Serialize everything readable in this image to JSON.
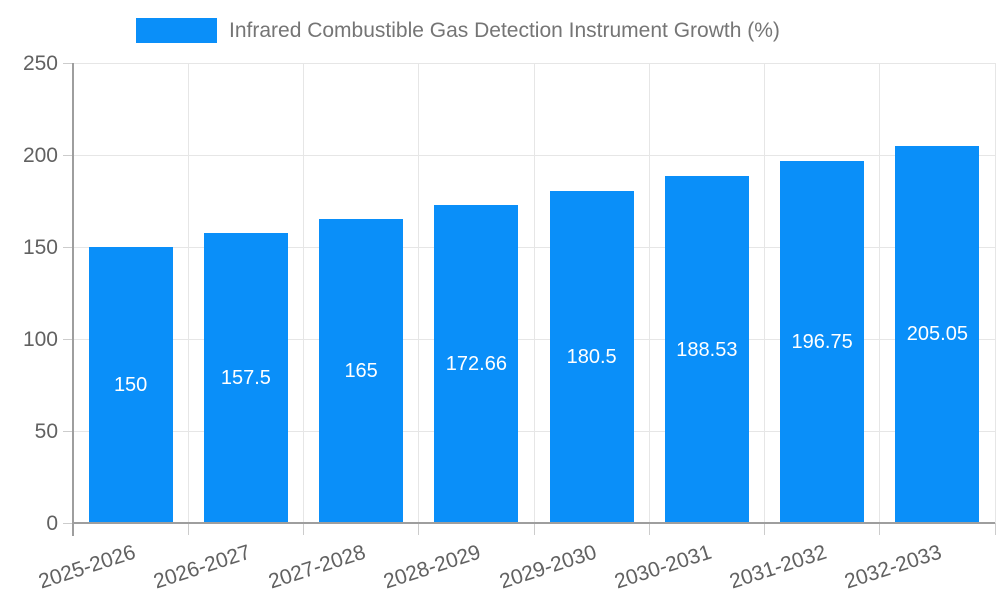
{
  "legend": {
    "label": "Infrared Combustible Gas Detection Instrument Growth (%)",
    "position": "top"
  },
  "colors": {
    "bar": "#0a8ff9",
    "gridline": "#e6e6e6",
    "axis_line": "#9e9e9e",
    "tick": "#cccccc",
    "axis_text": "#616161",
    "legend_text": "#757575",
    "bar_label_text": "#ffffff",
    "background": "#ffffff"
  },
  "chart_data": {
    "type": "bar",
    "title": "Infrared Combustible Gas Detection Instrument Growth (%)",
    "categories": [
      "2025-2026",
      "2026-2027",
      "2027-2028",
      "2028-2029",
      "2029-2030",
      "2030-2031",
      "2031-2032",
      "2032-2033"
    ],
    "series": [
      {
        "name": "Infrared Combustible Gas Detection Instrument Growth (%)",
        "values": [
          150,
          157.5,
          165,
          172.66,
          180.5,
          188.53,
          196.75,
          205.05
        ]
      }
    ],
    "value_labels": [
      "150",
      "157.5",
      "165",
      "172.66",
      "180.5",
      "188.53",
      "196.75",
      "205.05"
    ],
    "xlabel": "",
    "ylabel": "",
    "ylim": [
      0,
      250
    ],
    "yticks": [
      0,
      50,
      100,
      150,
      200,
      250
    ],
    "grid": "horizontal and vertical light gray gridlines",
    "legend_position": "top-center",
    "bar_label_position": "inside-center",
    "xtick_rotation_deg": -18
  }
}
